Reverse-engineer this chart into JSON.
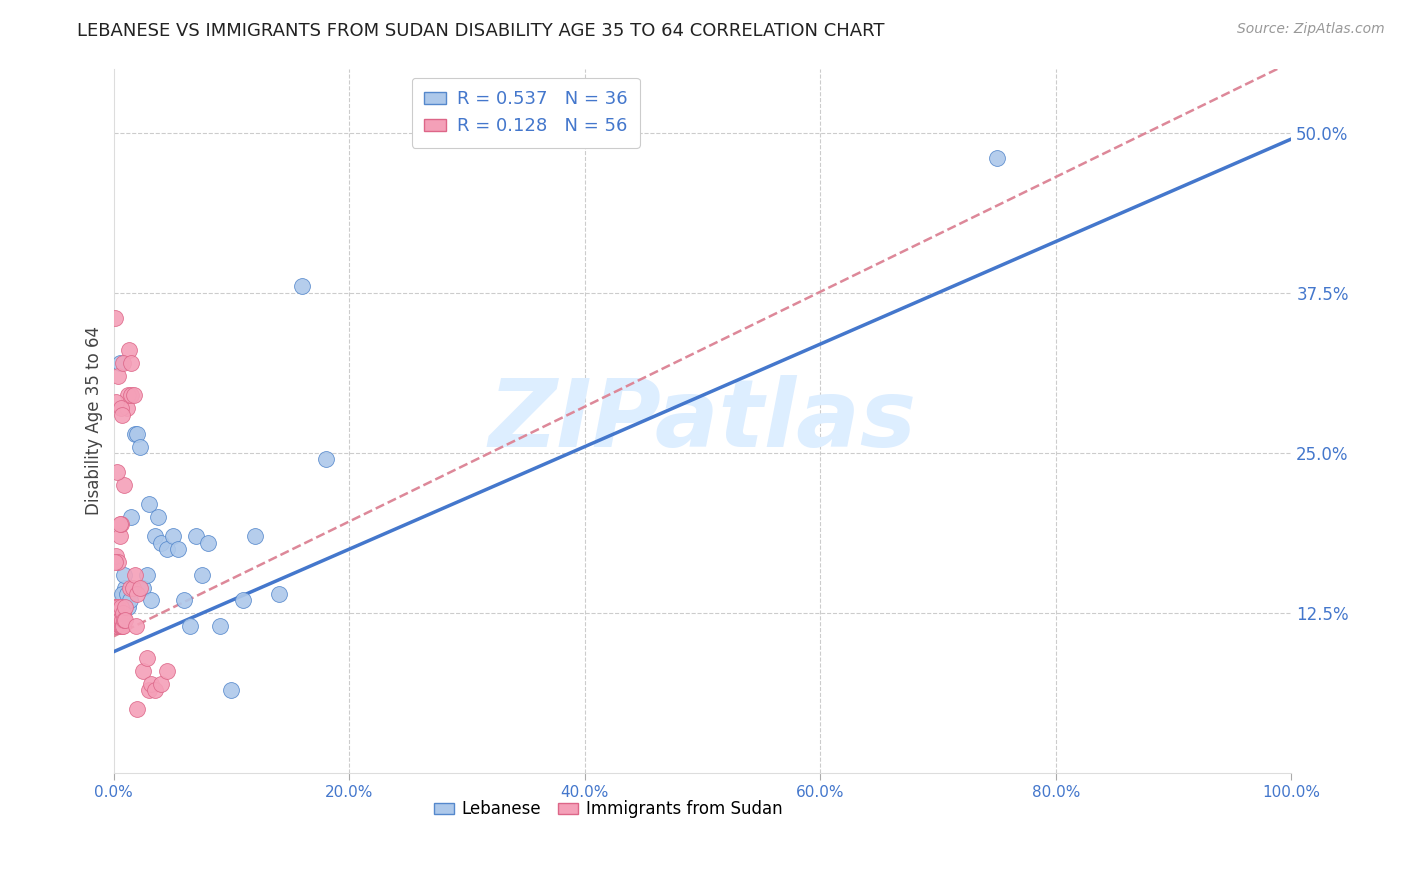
{
  "title": "LEBANESE VS IMMIGRANTS FROM SUDAN DISABILITY AGE 35 TO 64 CORRELATION CHART",
  "source": "Source: ZipAtlas.com",
  "ylabel": "Disability Age 35 to 64",
  "watermark": "ZIPatlas",
  "series": [
    {
      "name": "Lebanese",
      "R": 0.537,
      "N": 36,
      "fill_color": "#adc8ea",
      "edge_color": "#5588cc",
      "line_color": "#4477cc",
      "line_style": "solid",
      "line_x0": 0.0,
      "line_y0": 0.095,
      "line_x1": 1.0,
      "line_y1": 0.495,
      "x": [
        0.005,
        0.008,
        0.01,
        0.012,
        0.015,
        0.018,
        0.02,
        0.022,
        0.025,
        0.028,
        0.03,
        0.032,
        0.035,
        0.038,
        0.04,
        0.045,
        0.05,
        0.055,
        0.06,
        0.065,
        0.07,
        0.075,
        0.08,
        0.09,
        0.1,
        0.11,
        0.12,
        0.14,
        0.16,
        0.18,
        0.005,
        0.007,
        0.009,
        0.011,
        0.014,
        0.75
      ],
      "y": [
        0.13,
        0.14,
        0.145,
        0.13,
        0.2,
        0.265,
        0.265,
        0.255,
        0.145,
        0.155,
        0.21,
        0.135,
        0.185,
        0.2,
        0.18,
        0.175,
        0.185,
        0.175,
        0.135,
        0.115,
        0.185,
        0.155,
        0.18,
        0.115,
        0.065,
        0.135,
        0.185,
        0.14,
        0.38,
        0.245,
        0.32,
        0.14,
        0.155,
        0.14,
        0.135,
        0.48
      ]
    },
    {
      "name": "Immigrants from Sudan",
      "R": 0.128,
      "N": 56,
      "fill_color": "#f4a0b8",
      "edge_color": "#dd6688",
      "line_color": "#dd8899",
      "line_style": "dashed",
      "line_x0": 0.0,
      "line_y0": 0.107,
      "line_x1": 1.0,
      "line_y1": 0.555,
      "x": [
        0.001,
        0.001,
        0.001,
        0.001,
        0.002,
        0.002,
        0.002,
        0.002,
        0.003,
        0.003,
        0.003,
        0.004,
        0.004,
        0.004,
        0.005,
        0.005,
        0.005,
        0.006,
        0.006,
        0.006,
        0.007,
        0.007,
        0.008,
        0.008,
        0.009,
        0.009,
        0.01,
        0.01,
        0.011,
        0.012,
        0.013,
        0.014,
        0.015,
        0.016,
        0.017,
        0.018,
        0.019,
        0.02,
        0.022,
        0.025,
        0.028,
        0.03,
        0.032,
        0.035,
        0.04,
        0.045,
        0.001,
        0.002,
        0.003,
        0.004,
        0.005,
        0.006,
        0.007,
        0.008,
        0.015,
        0.02
      ],
      "y": [
        0.12,
        0.125,
        0.13,
        0.355,
        0.115,
        0.12,
        0.13,
        0.17,
        0.115,
        0.12,
        0.125,
        0.12,
        0.13,
        0.165,
        0.115,
        0.12,
        0.185,
        0.115,
        0.13,
        0.195,
        0.115,
        0.12,
        0.115,
        0.125,
        0.12,
        0.225,
        0.13,
        0.12,
        0.285,
        0.295,
        0.33,
        0.145,
        0.295,
        0.145,
        0.295,
        0.155,
        0.115,
        0.14,
        0.145,
        0.08,
        0.09,
        0.065,
        0.07,
        0.065,
        0.07,
        0.08,
        0.165,
        0.29,
        0.235,
        0.31,
        0.195,
        0.285,
        0.28,
        0.32,
        0.32,
        0.05
      ]
    }
  ],
  "xlim": [
    0.0,
    1.0
  ],
  "ylim": [
    0.0,
    0.55
  ],
  "yticks": [
    0.0,
    0.125,
    0.25,
    0.375,
    0.5
  ],
  "ytick_labels": [
    "",
    "12.5%",
    "25.0%",
    "37.5%",
    "50.0%"
  ],
  "xticks": [
    0.0,
    0.2,
    0.4,
    0.6,
    0.8,
    1.0
  ],
  "xtick_labels": [
    "0.0%",
    "20.0%",
    "40.0%",
    "60.0%",
    "80.0%",
    "100.0%"
  ],
  "grid_color": "#cccccc",
  "background_color": "#ffffff",
  "title_color": "#222222",
  "ylabel_color": "#444444",
  "tick_color": "#4477cc",
  "watermark_color": "#ddeeff",
  "title_fontsize": 13,
  "source_fontsize": 10,
  "watermark_fontsize": 68,
  "scatter_size": 130
}
